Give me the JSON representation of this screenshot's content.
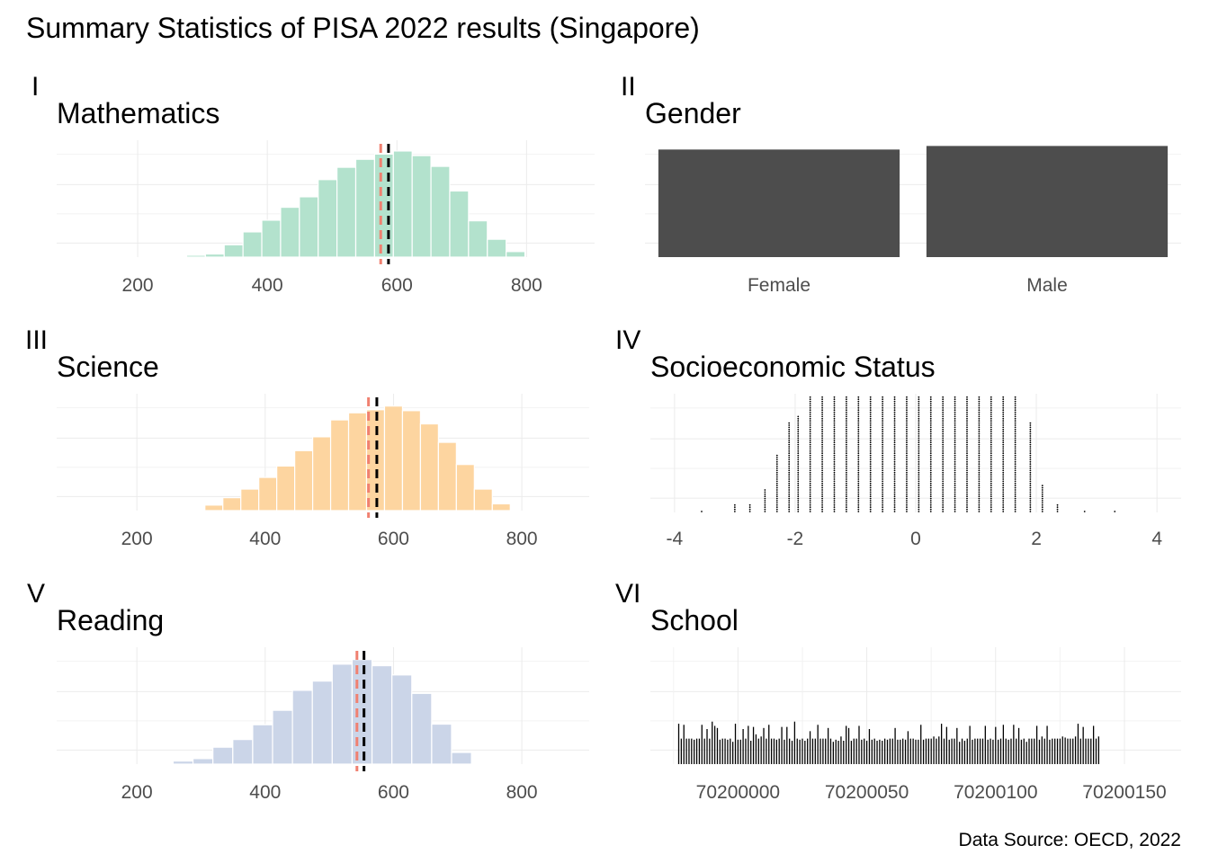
{
  "figure": {
    "title": "Summary Statistics of PISA 2022 results (Singapore)",
    "caption": "Data Source: OECD, 2022"
  },
  "colors": {
    "math": "#b3e2cd",
    "science": "#fdd5a0",
    "reading": "#cbd5e8",
    "bar_dark": "#4d4d4d",
    "median_line": "#000000",
    "mean_line": "#f08070"
  },
  "chart_data": [
    {
      "id": "math",
      "tag": "I",
      "type": "bar",
      "title": "Mathematics",
      "xlim": [
        75,
        905
      ],
      "x_ticks": [
        200,
        400,
        600,
        800
      ],
      "ylim": [
        0,
        380
      ],
      "bin_width": 29,
      "bins": [
        {
          "x": 290,
          "y": 6
        },
        {
          "x": 319,
          "y": 10
        },
        {
          "x": 348,
          "y": 40
        },
        {
          "x": 377,
          "y": 82
        },
        {
          "x": 406,
          "y": 120
        },
        {
          "x": 435,
          "y": 162
        },
        {
          "x": 464,
          "y": 196
        },
        {
          "x": 493,
          "y": 252
        },
        {
          "x": 522,
          "y": 292
        },
        {
          "x": 551,
          "y": 318
        },
        {
          "x": 580,
          "y": 335
        },
        {
          "x": 609,
          "y": 345
        },
        {
          "x": 638,
          "y": 330
        },
        {
          "x": 667,
          "y": 295
        },
        {
          "x": 696,
          "y": 215
        },
        {
          "x": 725,
          "y": 118
        },
        {
          "x": 754,
          "y": 58
        },
        {
          "x": 783,
          "y": 18
        }
      ],
      "mean": 575,
      "median": 587
    },
    {
      "id": "gender",
      "tag": "II",
      "type": "bar",
      "title": "Gender",
      "categories": [
        "Female",
        "Male"
      ],
      "values": [
        3249,
        3357
      ],
      "ylim": [
        0,
        3530
      ]
    },
    {
      "id": "science",
      "tag": "III",
      "type": "bar",
      "title": "Science",
      "xlim": [
        75,
        905
      ],
      "x_ticks": [
        200,
        400,
        600,
        800
      ],
      "ylim": [
        0,
        380
      ],
      "bin_width": 28,
      "bins": [
        {
          "x": 320,
          "y": 18
        },
        {
          "x": 348,
          "y": 42
        },
        {
          "x": 376,
          "y": 70
        },
        {
          "x": 404,
          "y": 108
        },
        {
          "x": 432,
          "y": 145
        },
        {
          "x": 460,
          "y": 195
        },
        {
          "x": 488,
          "y": 240
        },
        {
          "x": 516,
          "y": 295
        },
        {
          "x": 544,
          "y": 318
        },
        {
          "x": 572,
          "y": 328
        },
        {
          "x": 600,
          "y": 340
        },
        {
          "x": 628,
          "y": 325
        },
        {
          "x": 656,
          "y": 282
        },
        {
          "x": 684,
          "y": 222
        },
        {
          "x": 712,
          "y": 150
        },
        {
          "x": 740,
          "y": 70
        },
        {
          "x": 768,
          "y": 22
        }
      ],
      "mean": 561,
      "median": 574
    },
    {
      "id": "ses",
      "tag": "IV",
      "type": "scatter",
      "title": "Socioeconomic Status",
      "xlim": [
        -4.4,
        4.4
      ],
      "x_ticks": [
        -4,
        -2,
        0,
        2,
        4
      ],
      "dot_stacks": [
        {
          "x": -3.55,
          "count": 1
        },
        {
          "x": -3.0,
          "count": 4
        },
        {
          "x": -2.75,
          "count": 4
        },
        {
          "x": -2.5,
          "count": 11
        },
        {
          "x": -2.3,
          "count": 27
        },
        {
          "x": -2.1,
          "count": 42
        },
        {
          "x": -1.95,
          "count": 45
        },
        {
          "x": -1.75,
          "count": 54
        },
        {
          "x": -1.55,
          "count": 54
        },
        {
          "x": -1.35,
          "count": 54
        },
        {
          "x": -1.15,
          "count": 54
        },
        {
          "x": -0.95,
          "count": 54
        },
        {
          "x": -0.75,
          "count": 54
        },
        {
          "x": -0.55,
          "count": 54
        },
        {
          "x": -0.35,
          "count": 54
        },
        {
          "x": -0.15,
          "count": 54
        },
        {
          "x": 0.05,
          "count": 54
        },
        {
          "x": 0.25,
          "count": 54
        },
        {
          "x": 0.45,
          "count": 54
        },
        {
          "x": 0.65,
          "count": 54
        },
        {
          "x": 0.85,
          "count": 54
        },
        {
          "x": 1.05,
          "count": 54
        },
        {
          "x": 1.25,
          "count": 54
        },
        {
          "x": 1.45,
          "count": 54
        },
        {
          "x": 1.65,
          "count": 54
        },
        {
          "x": 1.9,
          "count": 42
        },
        {
          "x": 2.1,
          "count": 13
        },
        {
          "x": 2.35,
          "count": 4
        },
        {
          "x": 2.8,
          "count": 1
        },
        {
          "x": 3.3,
          "count": 1
        }
      ]
    },
    {
      "id": "reading",
      "tag": "V",
      "type": "bar",
      "title": "Reading",
      "xlim": [
        75,
        905
      ],
      "x_ticks": [
        200,
        400,
        600,
        800
      ],
      "ylim": [
        0,
        380
      ],
      "bin_width": 31,
      "bins": [
        {
          "x": 272,
          "y": 10
        },
        {
          "x": 303,
          "y": 18
        },
        {
          "x": 334,
          "y": 55
        },
        {
          "x": 365,
          "y": 80
        },
        {
          "x": 396,
          "y": 128
        },
        {
          "x": 427,
          "y": 175
        },
        {
          "x": 458,
          "y": 240
        },
        {
          "x": 489,
          "y": 270
        },
        {
          "x": 520,
          "y": 325
        },
        {
          "x": 551,
          "y": 340
        },
        {
          "x": 582,
          "y": 320
        },
        {
          "x": 613,
          "y": 290
        },
        {
          "x": 644,
          "y": 230
        },
        {
          "x": 675,
          "y": 130
        },
        {
          "x": 706,
          "y": 38
        }
      ],
      "mean": 543,
      "median": 554
    },
    {
      "id": "school",
      "tag": "VI",
      "type": "bar",
      "title": "School",
      "xlim": [
        70199966,
        70200172
      ],
      "x_ticks": [
        70200000,
        70200050,
        70200100,
        70200150
      ],
      "ylim": [
        0,
        110
      ],
      "school_first": 70199977,
      "school_count": 164,
      "values": [
        38,
        24,
        37,
        24,
        24,
        24,
        23,
        24,
        24,
        37,
        24,
        33,
        24,
        40,
        36,
        34,
        23,
        24,
        24,
        23,
        24,
        21,
        38,
        23,
        23,
        33,
        24,
        36,
        22,
        35,
        28,
        24,
        26,
        34,
        24,
        37,
        24,
        24,
        23,
        24,
        35,
        23,
        35,
        24,
        22,
        40,
        24,
        23,
        24,
        22,
        24,
        31,
        24,
        24,
        37,
        24,
        24,
        24,
        34,
        24,
        21,
        23,
        22,
        26,
        22,
        36,
        34,
        22,
        24,
        24,
        36,
        23,
        24,
        22,
        33,
        23,
        24,
        22,
        23,
        22,
        24,
        23,
        24,
        24,
        34,
        23,
        23,
        24,
        23,
        31,
        24,
        24,
        23,
        23,
        37,
        23,
        24,
        24,
        24,
        26,
        24,
        26,
        38,
        24,
        35,
        23,
        24,
        24,
        34,
        21,
        24,
        22,
        24,
        36,
        23,
        24,
        24,
        24,
        24,
        36,
        23,
        24,
        23,
        35,
        23,
        24,
        37,
        24,
        23,
        24,
        37,
        24,
        34,
        23,
        24,
        21,
        24,
        24,
        24,
        36,
        23,
        26,
        24,
        36,
        23,
        24,
        24,
        24,
        24,
        26,
        25,
        24,
        24,
        24,
        26,
        38,
        24,
        35,
        24,
        24,
        24,
        36,
        24,
        26
      ]
    }
  ]
}
